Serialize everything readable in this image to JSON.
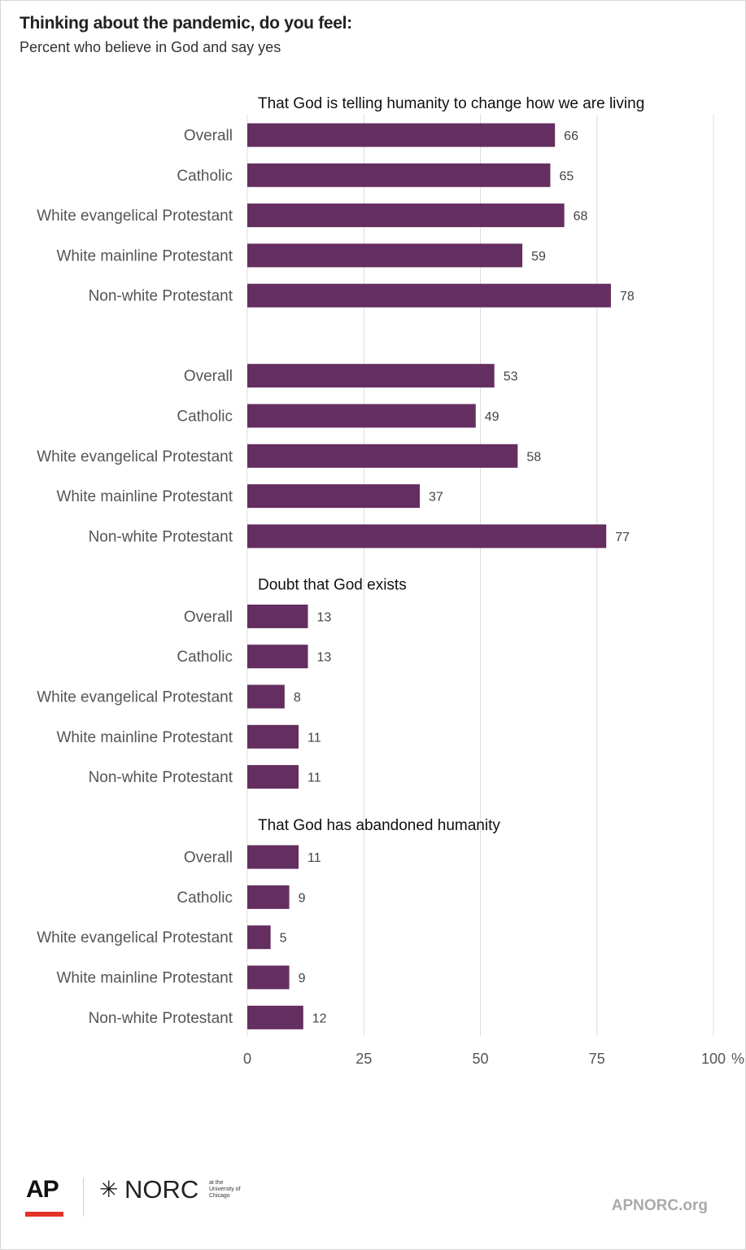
{
  "title": "Thinking about the pandemic, do you feel:",
  "subtitle": "Percent who believe in God and say yes",
  "footer": {
    "ap_logo": "AP",
    "norc_logo": "NORC",
    "norc_subtext": "at the University of Chicago",
    "site": "APNORC.org"
  },
  "colors": {
    "bar": "#642e60",
    "grid": "#dcdcdc"
  },
  "chart_data": {
    "type": "bar",
    "orientation": "horizontal",
    "unit": "%",
    "xlim": [
      0,
      100
    ],
    "x_ticks": [
      0,
      25,
      50,
      75,
      100
    ],
    "grid": true,
    "groups": [
      {
        "label": "That God is telling humanity to change how we are living",
        "categories": [
          "Overall",
          "Catholic",
          "White evangelical Protestant",
          "White mainline Protestant",
          "Non-white Protestant"
        ],
        "values": [
          66,
          65,
          68,
          59,
          78
        ]
      },
      {
        "label": "",
        "categories": [
          "Overall",
          "Catholic",
          "White evangelical Protestant",
          "White mainline Protestant",
          "Non-white Protestant"
        ],
        "values": [
          53,
          49,
          58,
          37,
          77
        ]
      },
      {
        "label": "Doubt that God exists",
        "categories": [
          "Overall",
          "Catholic",
          "White evangelical Protestant",
          "White mainline Protestant",
          "Non-white Protestant"
        ],
        "values": [
          13,
          13,
          8,
          11,
          11
        ]
      },
      {
        "label": "That God has abandoned humanity",
        "categories": [
          "Overall",
          "Catholic",
          "White evangelical Protestant",
          "White mainline Protestant",
          "Non-white Protestant"
        ],
        "values": [
          11,
          9,
          5,
          9,
          12
        ]
      }
    ]
  }
}
